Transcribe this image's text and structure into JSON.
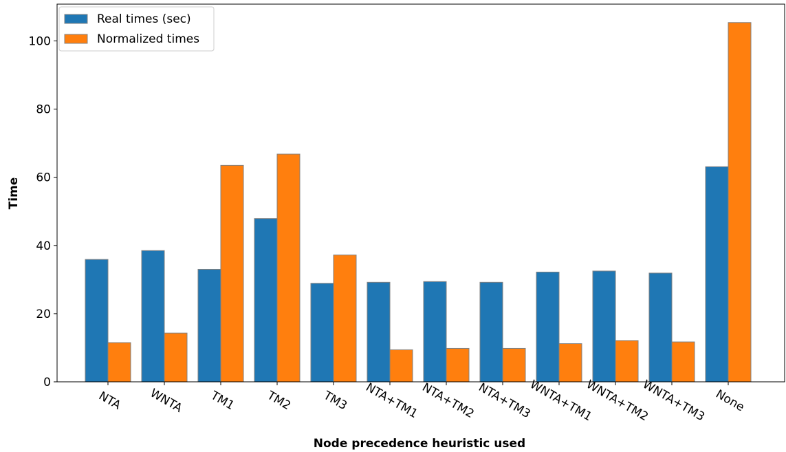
{
  "chart_data": {
    "type": "bar",
    "title": "",
    "xlabel": "Node precedence heuristic used",
    "ylabel": "Time",
    "categories": [
      "NTA",
      "WNTA",
      "TM1",
      "TM2",
      "TM3",
      "NTA+TM1",
      "NTA+TM2",
      "NTA+TM3",
      "WNTA+TM1",
      "WNTA+TM2",
      "WNTA+TM3",
      "None"
    ],
    "series": [
      {
        "name": "Real times (sec)",
        "color": "#1f77b4",
        "values": [
          35.9,
          38.5,
          33.0,
          47.9,
          28.9,
          29.2,
          29.4,
          29.2,
          32.2,
          32.5,
          31.9,
          63.1
        ]
      },
      {
        "name": "Normalized times",
        "color": "#ff7f0e",
        "values": [
          11.5,
          14.3,
          63.5,
          66.8,
          37.2,
          9.4,
          9.8,
          9.8,
          11.2,
          12.1,
          11.7,
          105.4
        ]
      }
    ],
    "ylim": [
      0,
      110.8
    ],
    "yticks": [
      0,
      20,
      40,
      60,
      80,
      100
    ],
    "legend": "top-left",
    "grid": false,
    "bar_edge_color": "#808080"
  }
}
